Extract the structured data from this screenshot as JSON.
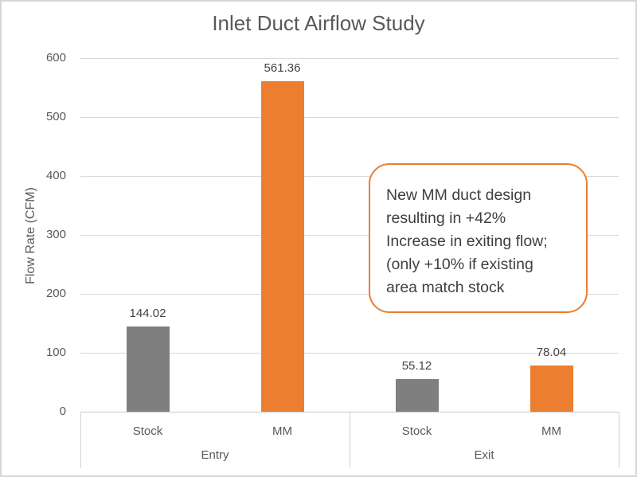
{
  "window": {
    "background": "#FFFFFF",
    "border_color": "#D6D6D6"
  },
  "chart_data": {
    "type": "bar",
    "title": "Inlet Duct Airflow Study",
    "xlabel": "",
    "ylabel": "Flow Rate (CFM)",
    "ylim": [
      0,
      600
    ],
    "yticks": [
      0,
      100,
      200,
      300,
      400,
      500,
      600
    ],
    "grid": true,
    "legend": false,
    "groups": [
      "Entry",
      "Exit"
    ],
    "categories": [
      "Stock",
      "MM"
    ],
    "points": [
      {
        "group": "Entry",
        "category": "Stock",
        "value": 144.02,
        "label": "144.02",
        "color": "#7F7F7F"
      },
      {
        "group": "Entry",
        "category": "MM",
        "value": 561.36,
        "label": "561.36",
        "color": "#ED7D31"
      },
      {
        "group": "Exit",
        "category": "Stock",
        "value": 55.12,
        "label": "55.12",
        "color": "#7F7F7F"
      },
      {
        "group": "Exit",
        "category": "MM",
        "value": 78.04,
        "label": "78.04",
        "color": "#ED7D31"
      }
    ],
    "colors": {
      "stock_bar": "#7F7F7F",
      "mm_bar": "#ED7D31",
      "gridline": "#D9D9D9",
      "axis_text": "#595959",
      "data_label_text": "#444444",
      "annotation_border": "#ED7D31"
    },
    "annotation": {
      "border_color": "#ED7D31",
      "lines": [
        "New MM duct design",
        "resulting in +42%",
        "Increase in exiting flow;",
        "(only +10% if existing",
        "area match stock"
      ]
    }
  }
}
